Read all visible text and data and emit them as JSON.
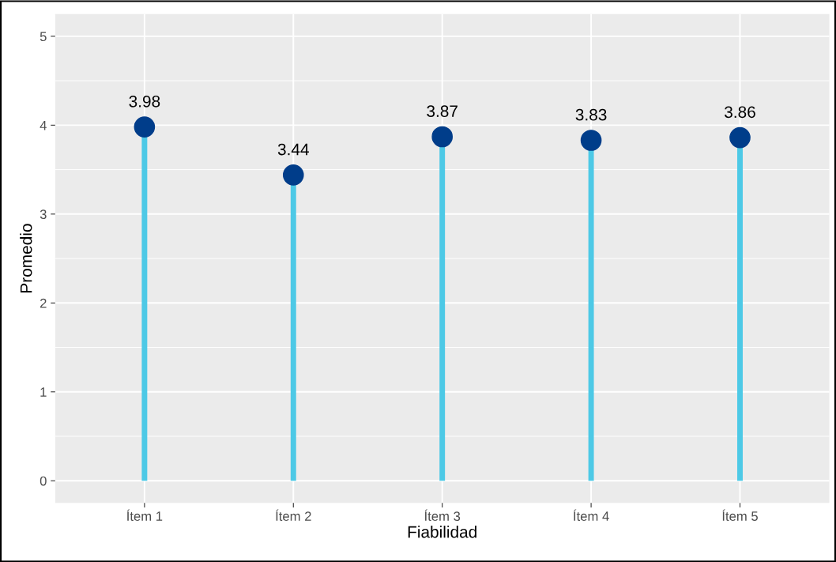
{
  "chart_data": {
    "type": "lollipop",
    "xlabel": "Fiabilidad",
    "ylabel": "Promedio",
    "categories": [
      "Ítem 1",
      "Ítem 2",
      "Ítem 3",
      "Ítem 4",
      "Ítem 5"
    ],
    "series": [
      {
        "color": "#003d8a",
        "values": [
          3.98,
          3.44,
          3.87,
          3.83,
          3.86
        ]
      }
    ],
    "ylim": [
      -0.25,
      5.25
    ],
    "yticks": [
      0,
      1,
      2,
      3,
      4,
      5
    ],
    "grid": true,
    "data_labels": true,
    "marker": "circle"
  }
}
